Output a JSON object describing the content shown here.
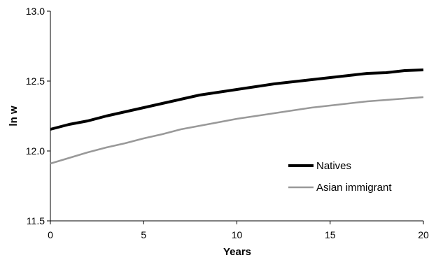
{
  "chart_data": {
    "type": "line",
    "title": "",
    "xlabel": "Years",
    "ylabel": "ln w",
    "xlim": [
      0,
      20
    ],
    "ylim": [
      11.5,
      13.0
    ],
    "xticks": [
      0,
      5,
      10,
      15,
      20
    ],
    "yticks": [
      11.5,
      12.0,
      12.5,
      13.0
    ],
    "ytick_labels": [
      "11.5",
      "12.0",
      "12.5",
      "13.0"
    ],
    "grid": false,
    "legend_position": "right",
    "x": [
      0,
      1,
      2,
      3,
      4,
      5,
      6,
      7,
      8,
      9,
      10,
      11,
      12,
      13,
      14,
      15,
      16,
      17,
      18,
      19,
      20
    ],
    "series": [
      {
        "name": "Natives",
        "color": "#000000",
        "values": [
          12.155,
          12.19,
          12.215,
          12.25,
          12.28,
          12.31,
          12.34,
          12.37,
          12.4,
          12.42,
          12.44,
          12.46,
          12.48,
          12.495,
          12.51,
          12.525,
          12.54,
          12.555,
          12.56,
          12.575,
          12.58
        ]
      },
      {
        "name": "Asian immigrant",
        "color": "#999999",
        "values": [
          11.91,
          11.95,
          11.99,
          12.025,
          12.055,
          12.09,
          12.12,
          12.155,
          12.18,
          12.205,
          12.23,
          12.25,
          12.27,
          12.29,
          12.31,
          12.325,
          12.34,
          12.355,
          12.365,
          12.375,
          12.385
        ]
      }
    ]
  }
}
